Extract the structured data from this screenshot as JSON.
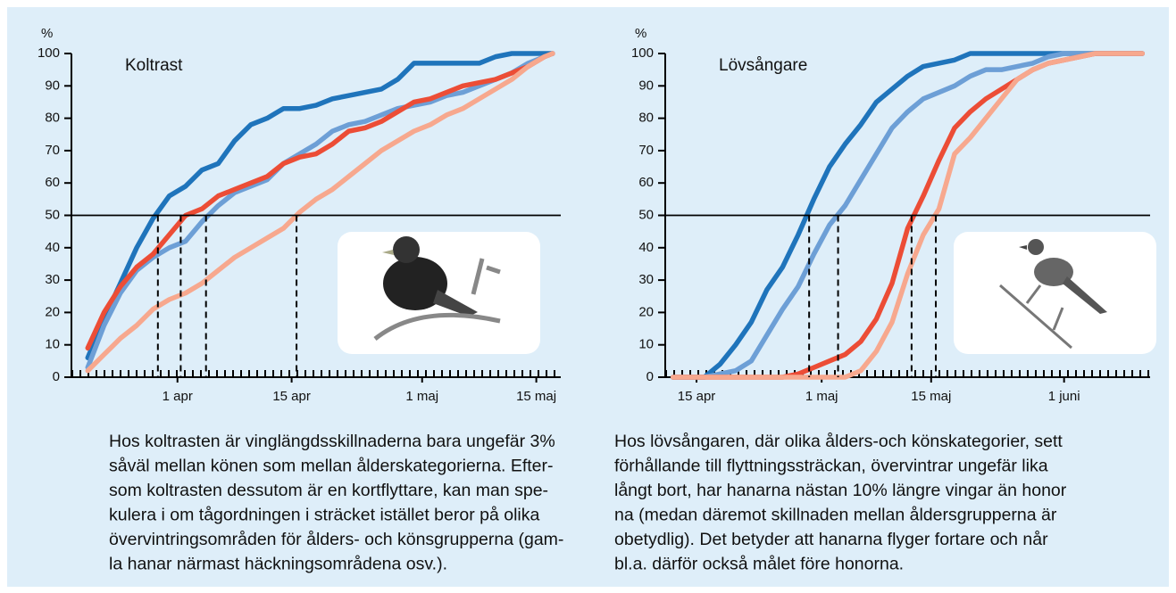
{
  "chart_data": [
    {
      "type": "line",
      "title": "Koltrast",
      "y_label": "%",
      "x": [
        80,
        82,
        84,
        86,
        88,
        90,
        92,
        94,
        96,
        98,
        100,
        102,
        104,
        106,
        108,
        110,
        112,
        114,
        116,
        118,
        120,
        122,
        124,
        126,
        128,
        130,
        132,
        134,
        136,
        137
      ],
      "series": [
        {
          "color": "#1f74bb",
          "values": [
            6,
            18,
            29,
            40,
            49,
            56,
            59,
            64,
            66,
            73,
            78,
            80,
            83,
            83,
            84,
            86,
            87,
            88,
            89,
            92,
            97,
            97,
            97,
            97,
            97,
            99,
            100,
            100,
            100,
            100
          ]
        },
        {
          "color": "#6d9fd6",
          "values": [
            3,
            16,
            26,
            33,
            37,
            40,
            42,
            48,
            53,
            57,
            59,
            61,
            66,
            69,
            72,
            76,
            78,
            79,
            81,
            83,
            84,
            85,
            87,
            88,
            90,
            92,
            94,
            97,
            99,
            100
          ]
        },
        {
          "color": "#ec4d36",
          "values": [
            9,
            20,
            28,
            34,
            38,
            44,
            50,
            52,
            56,
            58,
            60,
            62,
            66,
            68,
            69,
            72,
            76,
            77,
            79,
            82,
            85,
            86,
            88,
            90,
            91,
            92,
            94,
            96,
            99,
            100
          ]
        },
        {
          "color": "#f7a88e",
          "values": [
            2,
            7,
            12,
            16,
            21,
            24,
            26,
            29,
            33,
            37,
            40,
            43,
            46,
            51,
            55,
            58,
            62,
            66,
            70,
            73,
            76,
            78,
            81,
            83,
            86,
            89,
            92,
            96,
            99,
            100
          ]
        }
      ],
      "xlim": [
        78,
        138
      ],
      "xticks": [
        {
          "value": 91,
          "label": "1 apr"
        },
        {
          "value": 105,
          "label": "15 apr"
        },
        {
          "value": 121,
          "label": "1 maj"
        },
        {
          "value": 135,
          "label": "15 maj"
        }
      ],
      "ylim": [
        0,
        100
      ],
      "yticks": [
        0,
        10,
        20,
        30,
        40,
        50,
        60,
        70,
        80,
        90,
        100
      ],
      "hline": 50,
      "dashed_x": [
        88.6,
        91.4,
        94.5,
        105.6
      ],
      "caption": [
        "Hos koltrasten är vinglängdsskillnaderna bara ungefär 3%",
        "såväl mellan könen som mellan ålderskategorierna. Efter-",
        "som koltrasten dessutom är en kortflyttare, kan man spe-",
        "kulera i om tågordningen i sträcket istället beror på olika",
        "övervintringsområden för ålders- och könsgrupperna (gam-",
        "la hanar närmast häckningsområdena osv.)."
      ]
    },
    {
      "type": "line",
      "title": "Lövsångare",
      "y_label": "%",
      "x": [
        102,
        104,
        106,
        108,
        110,
        112,
        114,
        116,
        118,
        120,
        122,
        124,
        126,
        128,
        130,
        132,
        134,
        136,
        138,
        140,
        142,
        144,
        146,
        148,
        150,
        152,
        154,
        156,
        158,
        160,
        162
      ],
      "series": [
        {
          "color": "#1f74bb",
          "values": [
            0,
            0,
            0,
            4,
            10,
            17,
            27,
            34,
            44,
            55,
            65,
            72,
            78,
            85,
            89,
            93,
            96,
            97,
            98,
            100,
            100,
            100,
            100,
            100,
            100,
            100,
            100,
            100,
            100,
            100,
            100
          ]
        },
        {
          "color": "#6d9fd6",
          "values": [
            0,
            0,
            0,
            1,
            2,
            5,
            13,
            21,
            28,
            38,
            47,
            53,
            61,
            69,
            77,
            82,
            86,
            88,
            90,
            93,
            95,
            95,
            96,
            97,
            99,
            100,
            100,
            100,
            100,
            100,
            100
          ]
        },
        {
          "color": "#ec4d36",
          "values": [
            0,
            0,
            0,
            0,
            0,
            0,
            0,
            0,
            1,
            3,
            5,
            7,
            11,
            18,
            29,
            46,
            56,
            67,
            77,
            82,
            86,
            89,
            92,
            95,
            97,
            98,
            99,
            100,
            100,
            100,
            100
          ]
        },
        {
          "color": "#f7a88e",
          "values": [
            0,
            0,
            0,
            0,
            0,
            0,
            0,
            0,
            0,
            0,
            0,
            0,
            2,
            8,
            17,
            32,
            44,
            52,
            69,
            74,
            80,
            86,
            92,
            95,
            97,
            98,
            99,
            100,
            100,
            100,
            100
          ]
        }
      ],
      "xlim": [
        101,
        163
      ],
      "xticks": [
        {
          "value": 105,
          "label": "15 apr"
        },
        {
          "value": 121,
          "label": "1 maj"
        },
        {
          "value": 135,
          "label": "15 maj"
        },
        {
          "value": 152,
          "label": "1 juni"
        }
      ],
      "ylim": [
        0,
        100
      ],
      "yticks": [
        0,
        10,
        20,
        30,
        40,
        50,
        60,
        70,
        80,
        90,
        100
      ],
      "hline": 50,
      "dashed_x": [
        119.4,
        123.1,
        132.5,
        135.6
      ],
      "caption": [
        "Hos lövsångaren, där olika ålders-och könskategorier, sett",
        "förhållande till flyttningssträckan, övervintrar ungefär lika",
        "långt bort, har hanarna nästan 10% längre vingar än honor",
        "na (medan däremot skillnaden mellan åldersgrupperna är",
        "obetydlig). Det betyder att hanarna flyger fortare och når",
        "bl.a. därför också målet före honorna."
      ]
    }
  ]
}
